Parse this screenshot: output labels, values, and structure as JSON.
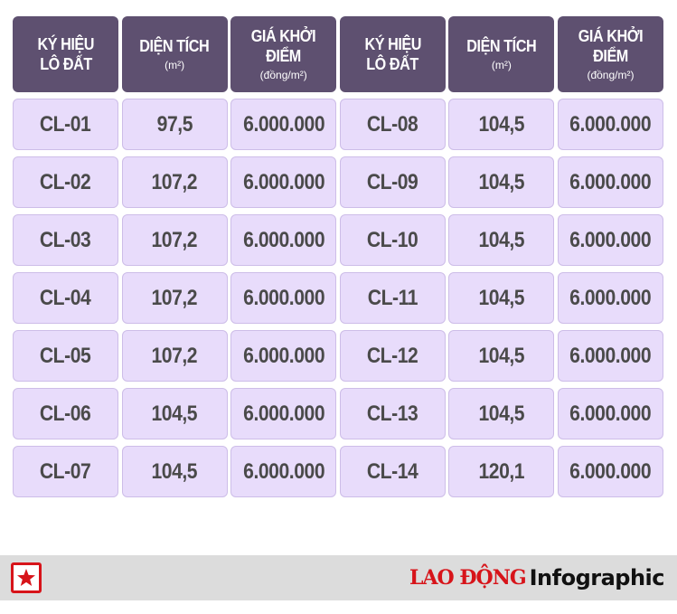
{
  "table": {
    "headers": [
      {
        "line1": "KÝ HIỆU",
        "line2": "LÔ ĐẤT",
        "sub": ""
      },
      {
        "line1": "DIỆN TÍCH",
        "line2": "",
        "sub": "(m²)"
      },
      {
        "line1": "GIÁ KHỞI ĐIỂM",
        "line2": "",
        "sub": "(đồng/m²)"
      },
      {
        "line1": "KÝ HIỆU",
        "line2": "LÔ ĐẤT",
        "sub": ""
      },
      {
        "line1": "DIỆN TÍCH",
        "line2": "",
        "sub": "(m²)"
      },
      {
        "line1": "GIÁ KHỞI ĐIỂM",
        "line2": "",
        "sub": "(đồng/m²)"
      }
    ],
    "rows": [
      [
        "CL-01",
        "97,5",
        "6.000.000",
        "CL-08",
        "104,5",
        "6.000.000"
      ],
      [
        "CL-02",
        "107,2",
        "6.000.000",
        "CL-09",
        "104,5",
        "6.000.000"
      ],
      [
        "CL-03",
        "107,2",
        "6.000.000",
        "CL-10",
        "104,5",
        "6.000.000"
      ],
      [
        "CL-04",
        "107,2",
        "6.000.000",
        "CL-11",
        "104,5",
        "6.000.000"
      ],
      [
        "CL-05",
        "107,2",
        "6.000.000",
        "CL-12",
        "104,5",
        "6.000.000"
      ],
      [
        "CL-06",
        "104,5",
        "6.000.000",
        "CL-13",
        "104,5",
        "6.000.000"
      ],
      [
        "CL-07",
        "104,5",
        "6.000.000",
        "CL-14",
        "120,1",
        "6.000.000"
      ]
    ]
  },
  "footer": {
    "logo_icon": "star-logo-icon",
    "brand_red": "LAO ĐỘNG",
    "brand_black": "Infographic"
  },
  "colors": {
    "header_bg": "#5e5070",
    "cell_bg": "#e8dcfb",
    "footer_bg": "#dcdcdc",
    "brand_red": "#d7141a"
  }
}
